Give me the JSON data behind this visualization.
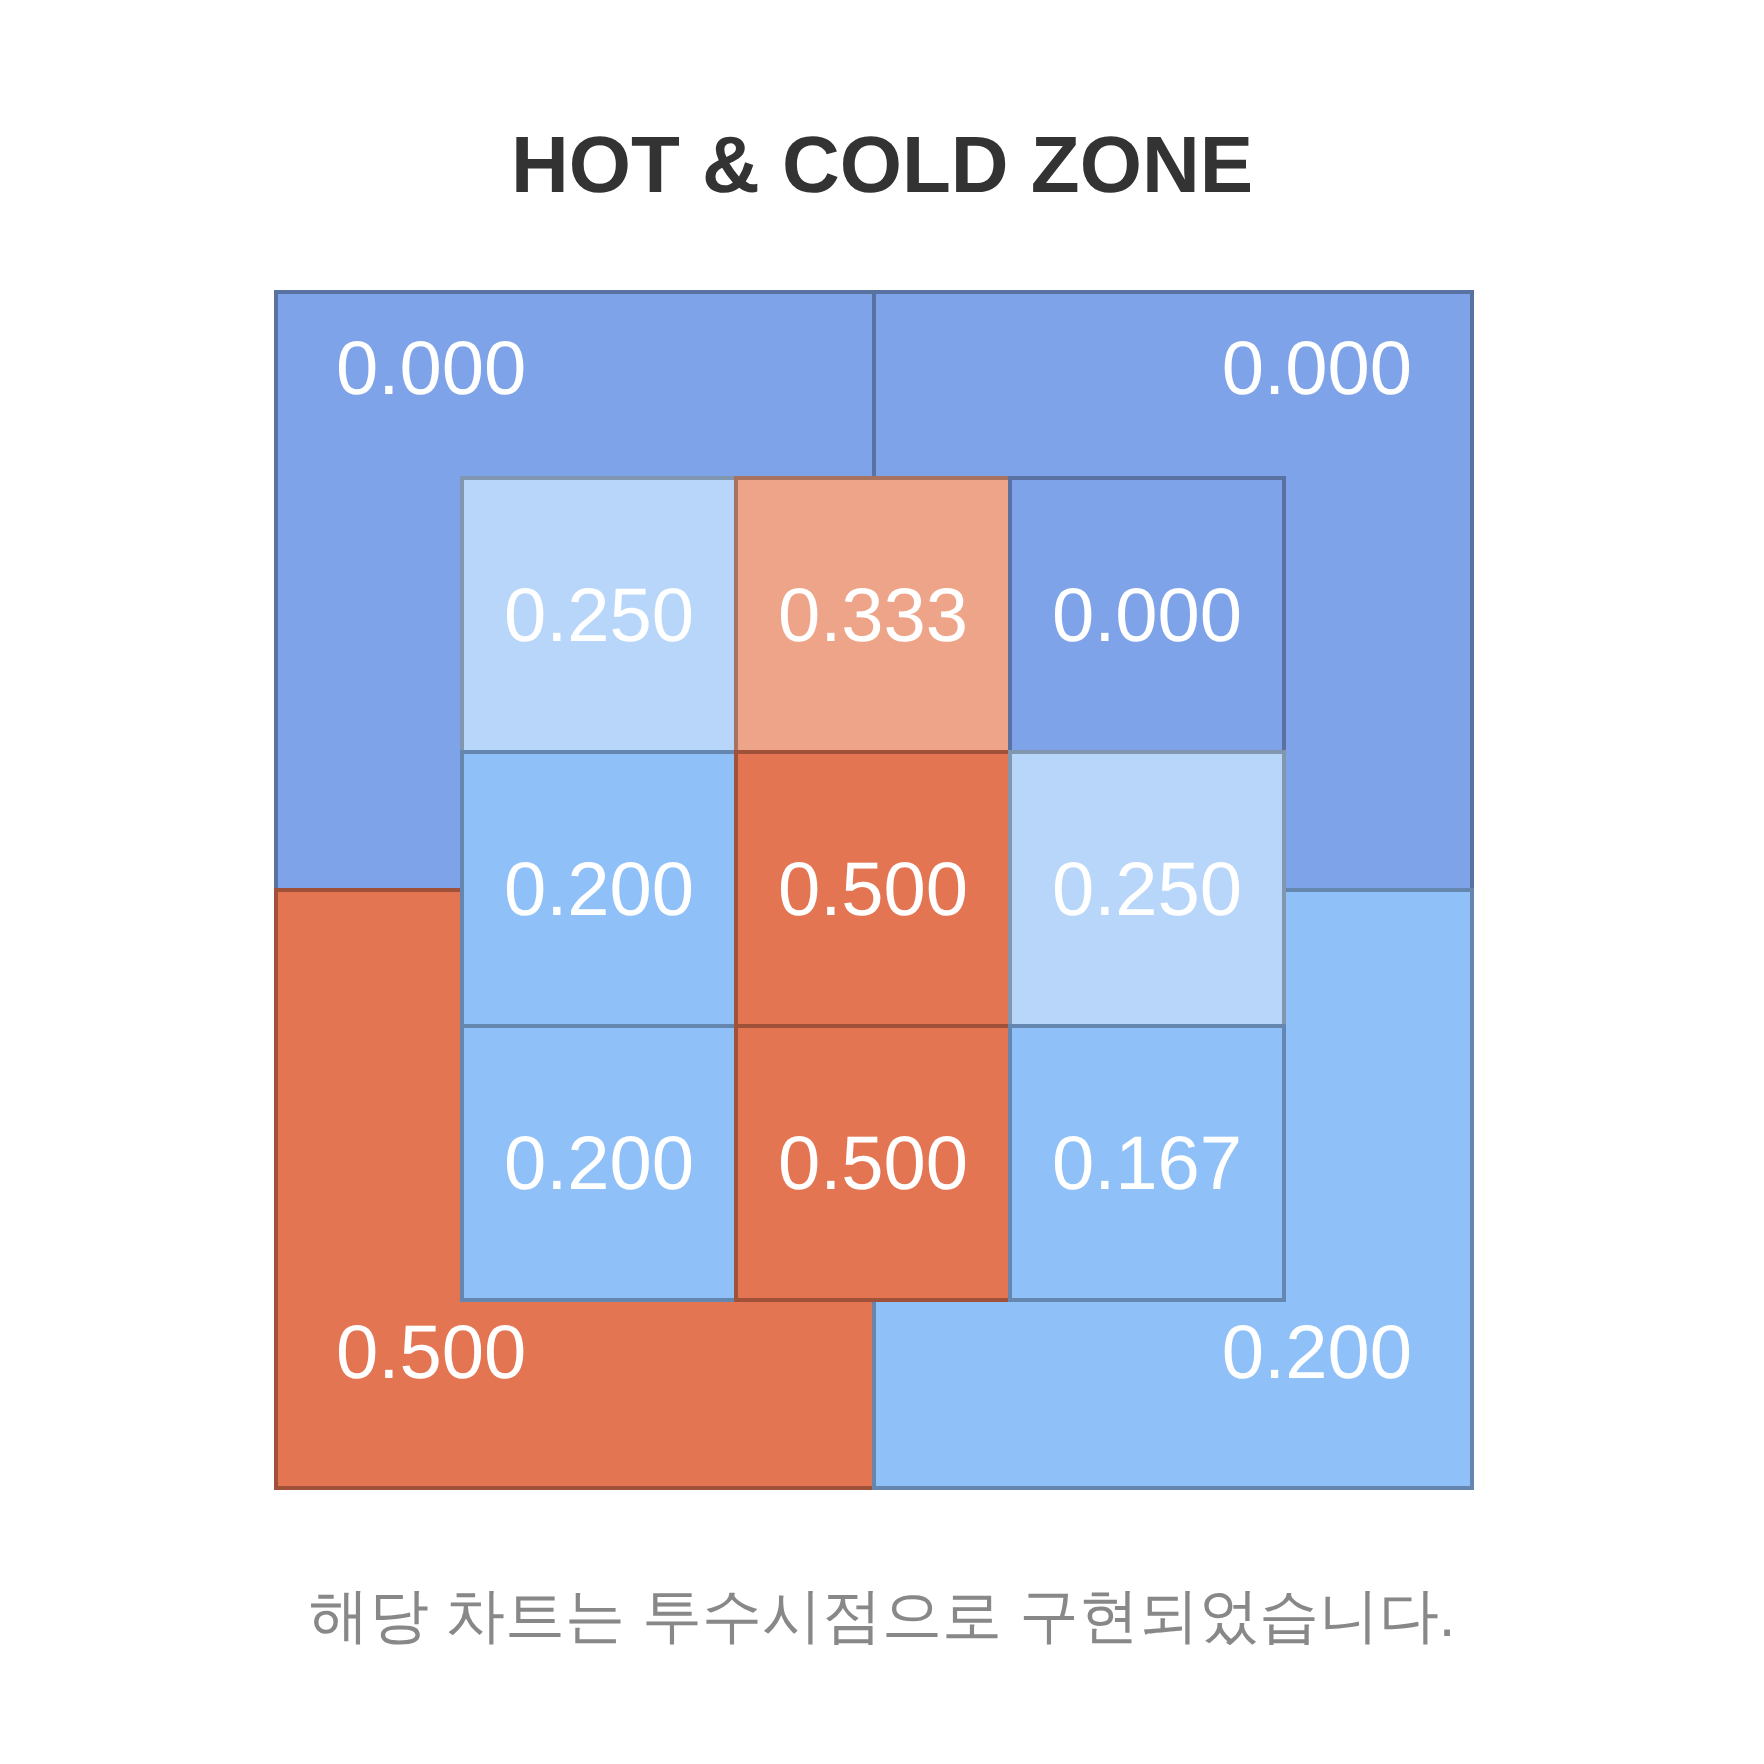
{
  "chart_data": [
    {
      "type": "heatmap",
      "title": "HOT & COLD ZONE",
      "categories": [
        null,
        null
      ],
      "y_categories": [
        null,
        null
      ],
      "cells": [
        [
          0.0,
          0.0
        ],
        [
          0.5,
          0.2
        ]
      ],
      "cell_labels": [
        [
          "0.000",
          "0.000"
        ],
        [
          "0.500",
          "0.200"
        ]
      ],
      "colors": [
        "#7fa3e8",
        "#7fa3e8",
        "#e37552",
        "#90c0f8"
      ],
      "annotations": [
        "해당 차트는 투수시점으로 구현되었습니다."
      ]
    },
    {
      "type": "heatmap",
      "categories": [
        null,
        null,
        null
      ],
      "y_categories": [
        null,
        null,
        null
      ],
      "cells": [
        [
          0.25,
          0.333,
          0.0
        ],
        [
          0.2,
          0.5,
          0.25
        ],
        [
          0.2,
          0.5,
          0.167
        ]
      ],
      "cell_labels": [
        [
          "0.250",
          "0.333",
          "0.000"
        ],
        [
          "0.200",
          "0.500",
          "0.250"
        ],
        [
          "0.200",
          "0.500",
          "0.167"
        ]
      ],
      "colors": [
        "#b8d6fa",
        "#eea488",
        "#7fa3e8",
        "#90c0f8",
        "#e37552",
        "#b8d6fa",
        "#90c0f8",
        "#e37552",
        "#90c0f8"
      ]
    }
  ]
}
